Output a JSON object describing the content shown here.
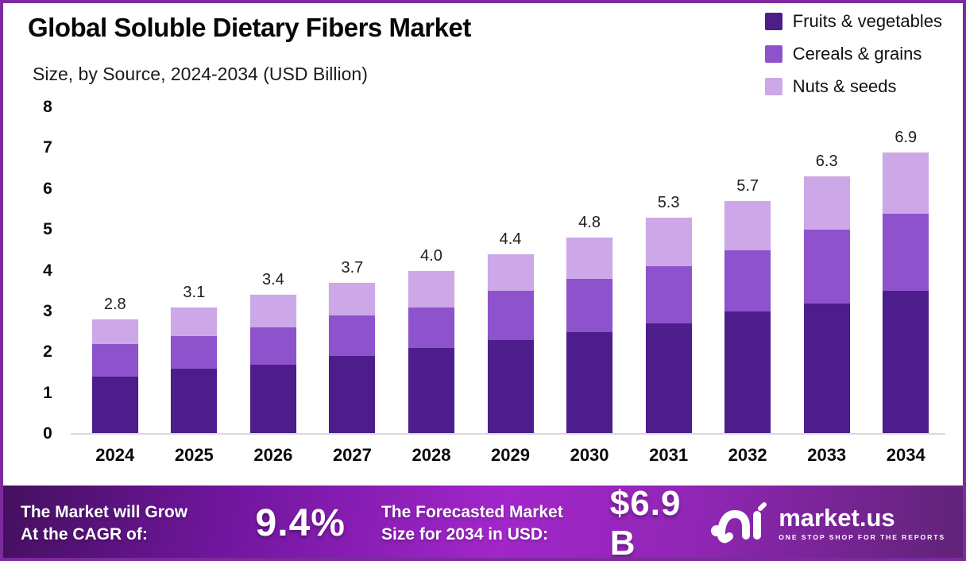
{
  "header": {
    "title": "Global Soluble Dietary Fibers Market",
    "subtitle": "Size, by Source, 2024-2034 (USD Billion)"
  },
  "legend": {
    "items": [
      {
        "label": "Fruits & vegetables",
        "color": "#4c1d8b"
      },
      {
        "label": "Cereals & grains",
        "color": "#8e52cc"
      },
      {
        "label": "Nuts & seeds",
        "color": "#cda8e8"
      }
    ]
  },
  "chart_data": {
    "type": "bar",
    "stacked": true,
    "title": "Global Soluble Dietary Fibers Market Size, by Source, 2024-2034 (USD Billion)",
    "xlabel": "",
    "ylabel": "USD Billion",
    "ylim": [
      0,
      8
    ],
    "ytick_step": 1,
    "grid": false,
    "legend_position": "top-right",
    "categories": [
      "2024",
      "2025",
      "2026",
      "2027",
      "2028",
      "2029",
      "2030",
      "2031",
      "2032",
      "2033",
      "2034"
    ],
    "series": [
      {
        "name": "Fruits & vegetables",
        "color": "#4c1d8b",
        "values": [
          1.4,
          1.6,
          1.7,
          1.9,
          2.1,
          2.3,
          2.5,
          2.7,
          3.0,
          3.2,
          3.5
        ]
      },
      {
        "name": "Cereals & grains",
        "color": "#8e52cc",
        "values": [
          0.8,
          0.8,
          0.9,
          1.0,
          1.0,
          1.2,
          1.3,
          1.4,
          1.5,
          1.8,
          1.9
        ]
      },
      {
        "name": "Nuts & seeds",
        "color": "#cda8e8",
        "values": [
          0.6,
          0.7,
          0.8,
          0.8,
          0.9,
          0.9,
          1.0,
          1.2,
          1.2,
          1.3,
          1.5
        ]
      }
    ],
    "totals": [
      "2.8",
      "3.1",
      "3.4",
      "3.7",
      "4.0",
      "4.4",
      "4.8",
      "5.3",
      "5.7",
      "6.3",
      "6.9"
    ]
  },
  "footer": {
    "cagr_label_line1": "The Market will Grow",
    "cagr_label_line2": "At the CAGR of:",
    "cagr_value": "9.4%",
    "forecast_label_line1": "The Forecasted Market",
    "forecast_label_line2": "Size for 2034 in USD:",
    "forecast_value": "$6.9 B",
    "brand": {
      "name": "market.us",
      "tagline": "ONE STOP SHOP FOR THE REPORTS"
    }
  },
  "colors": {
    "frame_border": "#7c2a9e",
    "background": "#ffffff",
    "axis_line": "#d9d9d9",
    "footer_gradient_start": "#44105e",
    "footer_gradient_mid": "#a226ca",
    "footer_gradient_end": "#5f2376",
    "text_dark": "#0a0a0a",
    "text_light": "#ffffff"
  }
}
